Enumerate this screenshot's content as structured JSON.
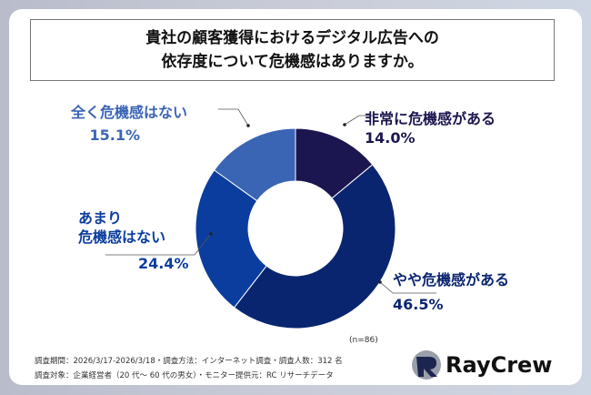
{
  "title_lines": [
    "貴社の顧客獲得におけるデジタル広告への",
    "依存度について危機感はありますか。"
  ],
  "chart_data": {
    "type": "pie",
    "donut": true,
    "categories": [
      "非常に危機感がある",
      "やや危機感がある",
      "あまり危機感はない",
      "全く危機感はない"
    ],
    "values": [
      14.0,
      46.5,
      24.4,
      15.1
    ],
    "value_labels": [
      "14.0%",
      "46.5%",
      "24.4%",
      "15.1%"
    ],
    "colors": [
      "#1c1650",
      "#0a2570",
      "#0b3d9e",
      "#3a64b4"
    ],
    "label_colors": [
      "#1c1650",
      "#0a2570",
      "#0b3d9e",
      "#3a64b4"
    ],
    "start": "top",
    "direction": "clockwise"
  },
  "sample_size": "(n=86)",
  "footnotes": [
    "調査期間：2026/3/17-2026/3/18・調査方法：インターネット調査・調査人数：312 名",
    "調査対象：企業経営者（20 代～ 60 代の男女）・モニター提供元：RC リサーチデータ"
  ],
  "logo": {
    "text": "RayCrew"
  }
}
